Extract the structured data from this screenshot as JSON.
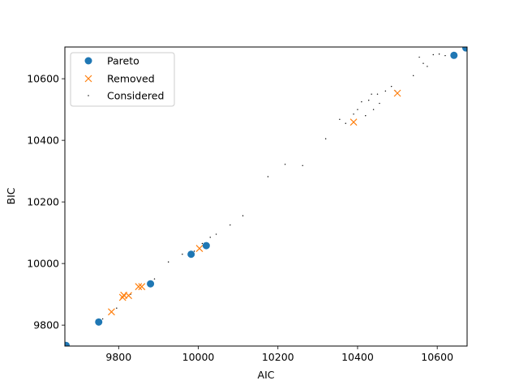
{
  "chart_data": {
    "type": "scatter",
    "title": "",
    "xlabel": "AIC",
    "ylabel": "BIC",
    "xlim": [
      9665,
      10675
    ],
    "ylim": [
      9732,
      10703
    ],
    "xticks": [
      9800,
      10000,
      10200,
      10400,
      10600
    ],
    "yticks": [
      9800,
      10000,
      10200,
      10400,
      10600
    ],
    "grid": false,
    "legend_position": "upper-left",
    "colors": {
      "pareto": "#1f77b4",
      "removed": "#ff7f0e",
      "considered": "#000000"
    },
    "series": [
      {
        "name": "Pareto",
        "marker": "o",
        "points": [
          [
            9668,
            9734
          ],
          [
            9750,
            9810
          ],
          [
            9880,
            9934
          ],
          [
            9982,
            10030
          ],
          [
            10020,
            10058
          ],
          [
            10642,
            10676
          ],
          [
            10672,
            10700
          ]
        ]
      },
      {
        "name": "Removed",
        "marker": "x",
        "points": [
          [
            9782,
            9843
          ],
          [
            9810,
            9890
          ],
          [
            9813,
            9897
          ],
          [
            9825,
            9896
          ],
          [
            9850,
            9925
          ],
          [
            9858,
            9925
          ],
          [
            10003,
            10049
          ],
          [
            10390,
            10459
          ],
          [
            10500,
            10553
          ]
        ]
      },
      {
        "name": "Considered",
        "marker": ".",
        "points": [
          [
            9760,
            9820
          ],
          [
            9795,
            9855
          ],
          [
            9830,
            9900
          ],
          [
            9890,
            9950
          ],
          [
            9925,
            10005
          ],
          [
            9960,
            10030
          ],
          [
            9990,
            10040
          ],
          [
            10010,
            10065
          ],
          [
            10030,
            10085
          ],
          [
            10045,
            10095
          ],
          [
            10080,
            10125
          ],
          [
            10112,
            10155
          ],
          [
            10175,
            10282
          ],
          [
            10218,
            10322
          ],
          [
            10262,
            10318
          ],
          [
            10320,
            10405
          ],
          [
            10355,
            10468
          ],
          [
            10370,
            10455
          ],
          [
            10390,
            10485
          ],
          [
            10400,
            10500
          ],
          [
            10410,
            10525
          ],
          [
            10420,
            10480
          ],
          [
            10428,
            10530
          ],
          [
            10435,
            10550
          ],
          [
            10440,
            10500
          ],
          [
            10450,
            10550
          ],
          [
            10455,
            10520
          ],
          [
            10470,
            10560
          ],
          [
            10485,
            10575
          ],
          [
            10495,
            10560
          ],
          [
            10540,
            10610
          ],
          [
            10555,
            10670
          ],
          [
            10565,
            10650
          ],
          [
            10575,
            10640
          ],
          [
            10590,
            10678
          ],
          [
            10605,
            10680
          ],
          [
            10620,
            10675
          ]
        ]
      }
    ]
  }
}
